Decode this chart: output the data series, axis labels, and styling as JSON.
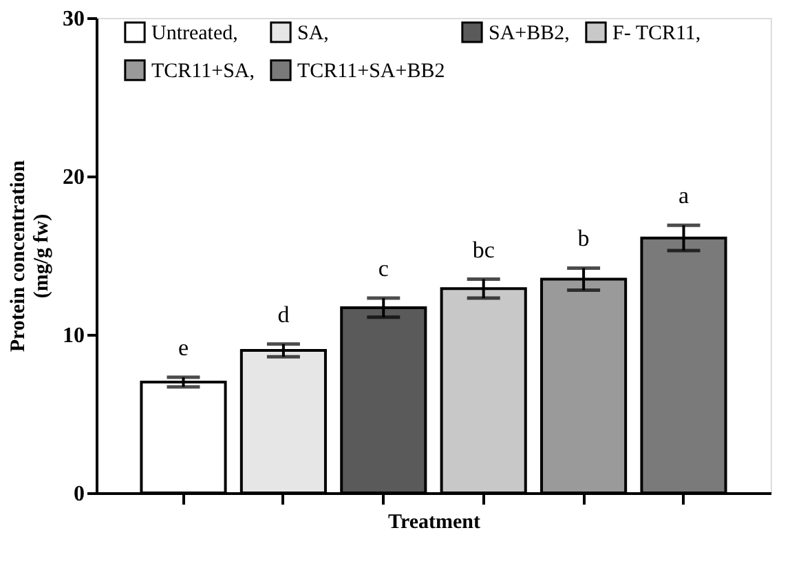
{
  "chart_data": {
    "type": "bar",
    "xlabel": "Treatment",
    "ylabel": "Protein concentration\n(mg/g fw)",
    "categories": [
      null,
      null,
      null,
      null,
      null,
      null
    ],
    "series": [
      {
        "name": "Untreated,",
        "color": "#ffffff",
        "values": [
          7.0,
          null,
          null,
          null,
          null,
          null
        ],
        "errors": [
          0.3,
          null,
          null,
          null,
          null,
          null
        ]
      },
      {
        "name": "SA,",
        "color": "#e6e6e6",
        "values": [
          null,
          9.0,
          null,
          null,
          null,
          null
        ],
        "errors": [
          null,
          0.4,
          null,
          null,
          null,
          null
        ]
      },
      {
        "name": "SA+BB2,",
        "color": "#5a5a5a",
        "values": [
          null,
          null,
          11.7,
          null,
          null,
          null
        ],
        "errors": [
          null,
          null,
          0.6,
          null,
          null,
          null
        ]
      },
      {
        "name": "F- TCR11,",
        "color": "#c8c8c8",
        "values": [
          null,
          null,
          null,
          12.9,
          null,
          null
        ],
        "errors": [
          null,
          null,
          null,
          0.6,
          null,
          null
        ]
      },
      {
        "name": "TCR11+SA,",
        "color": "#9a9a9a",
        "values": [
          null,
          null,
          null,
          null,
          13.5,
          null
        ],
        "errors": [
          null,
          null,
          null,
          null,
          0.7,
          null
        ]
      },
      {
        "name": "TCR11+SA+BB2",
        "color": "#7a7a7a",
        "values": [
          null,
          null,
          null,
          null,
          null,
          16.1
        ],
        "errors": [
          null,
          null,
          null,
          null,
          null,
          0.8
        ]
      }
    ],
    "annotations": [
      "e",
      "d",
      "c",
      "bc",
      "b",
      "a"
    ],
    "ylim": [
      0,
      30
    ],
    "yticks": [
      0,
      10,
      20,
      30
    ],
    "grid": false,
    "legend": "top",
    "tick_labels": "y"
  }
}
